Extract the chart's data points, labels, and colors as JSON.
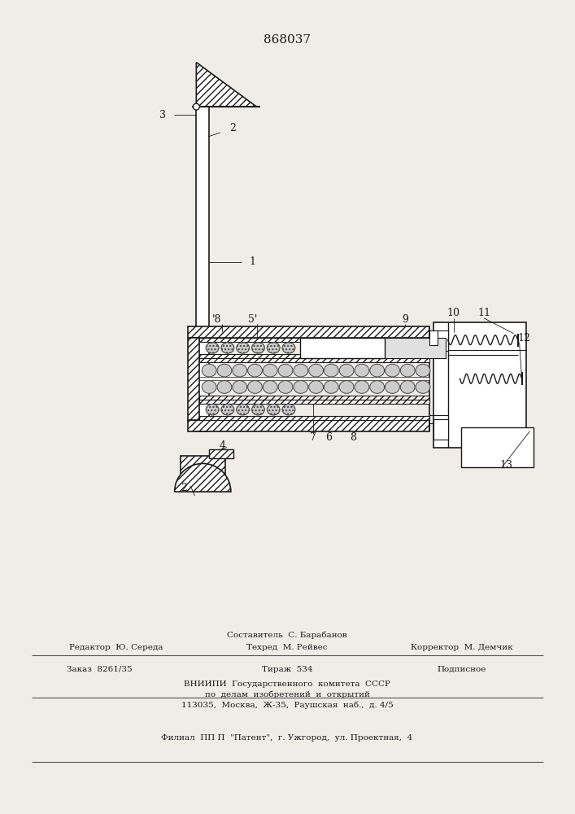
{
  "title": "868037",
  "bg_color": "#f0ede8",
  "line_color": "#1a1a1a",
  "footer": {
    "line1": "Составитель  С. Барабанов",
    "line2_left": "Редактор  Ю. Середа",
    "line2_mid": "Техред  М. Рейвес",
    "line2_right": "Корректор  М. Демчик",
    "line3_left": "Заказ  8261/35",
    "line3_mid": "Тираж  534",
    "line3_right": "Подписное",
    "line4": "ВНИИПИ  Государственного  комитета  СССР",
    "line5": "по  делам  изобретений  и  открытий",
    "line6": "113035,  Москва,  Ж-35,  Раушская  наб.,  д. 4/5",
    "line7": "Филиал  ПП П  \"Патент\",  г. Ужгород,  ул. Проектная,  4"
  }
}
